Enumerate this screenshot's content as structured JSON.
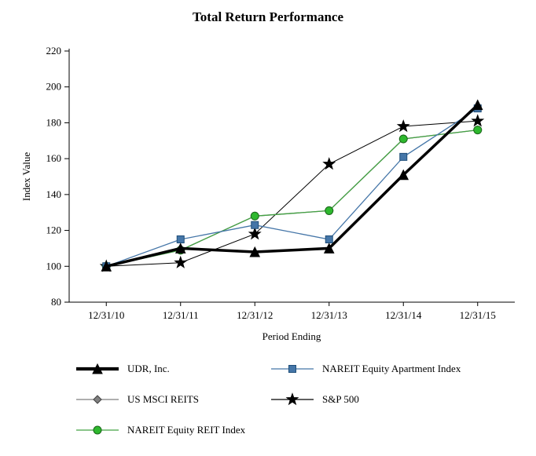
{
  "page": {
    "background": "#ffffff"
  },
  "chart_data": {
    "type": "line",
    "title": "Total Return Performance",
    "xlabel": "Period Ending",
    "ylabel": "Index Value",
    "categories": [
      "12/31/10",
      "12/31/11",
      "12/31/12",
      "12/31/13",
      "12/31/14",
      "12/31/15"
    ],
    "ylim": [
      80,
      220
    ],
    "ytick_step": 20,
    "grid": false,
    "legend_position": "bottom",
    "series": [
      {
        "name": "UDR, Inc.",
        "values": [
          100,
          110,
          108,
          110,
          151,
          190
        ],
        "color": "#000000",
        "marker": "triangle",
        "marker_fill": "#000000",
        "marker_stroke": "#000000",
        "marker_size": 6,
        "line_width": 3.5
      },
      {
        "name": "NAREIT Equity Apartment Index",
        "values": [
          100,
          115,
          123,
          115,
          161,
          188
        ],
        "color": "#4576a8",
        "marker": "square",
        "marker_fill": "#4576a8",
        "marker_stroke": "#1f4e79",
        "marker_size": 4.5,
        "line_width": 1.3
      },
      {
        "name": "US MSCI REITS",
        "values": [
          100,
          109,
          128,
          131,
          171,
          176
        ],
        "color": "#7f7f7f",
        "marker": "diamond",
        "marker_fill": "#808080",
        "marker_stroke": "#3f3f3f",
        "marker_size": 5,
        "line_width": 1.3
      },
      {
        "name": "S&P 500",
        "values": [
          100,
          102,
          118,
          157,
          178,
          181
        ],
        "color": "#000000",
        "marker": "star",
        "marker_fill": "#000000",
        "marker_stroke": "#000000",
        "marker_size": 5.5,
        "line_width": 1
      },
      {
        "name": "NAREIT Equity REIT Index",
        "values": [
          100,
          109,
          128,
          131,
          171,
          176
        ],
        "color": "#44a244",
        "marker": "circle",
        "marker_fill": "#2eb82e",
        "marker_stroke": "#1a661a",
        "marker_size": 5,
        "line_width": 1.3
      }
    ],
    "draw_order": [
      3,
      2,
      4,
      1,
      0
    ]
  }
}
